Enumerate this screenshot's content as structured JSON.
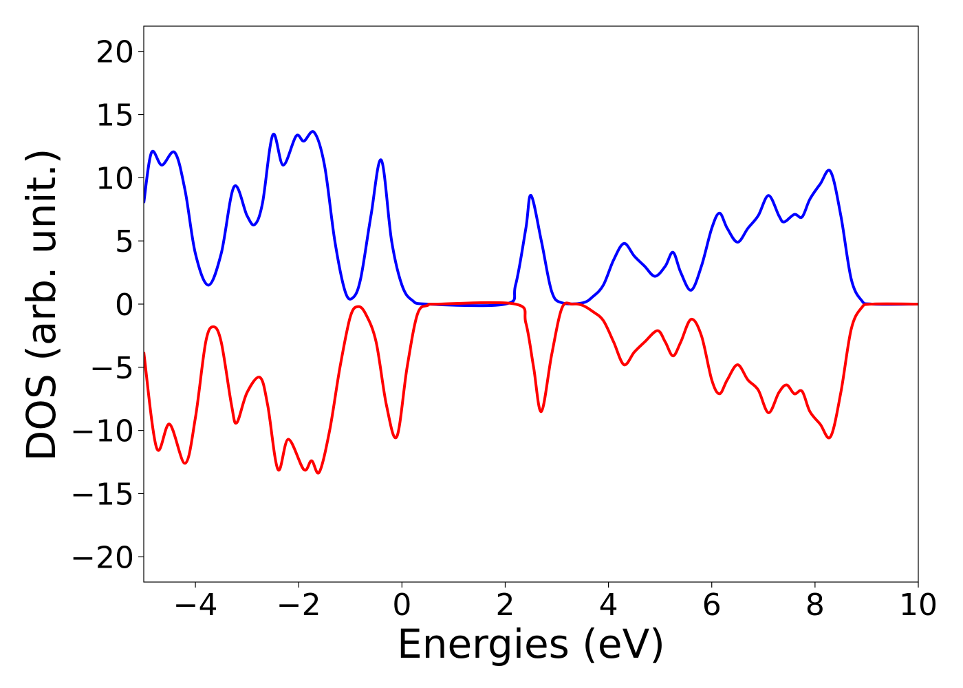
{
  "chart_data": {
    "type": "line",
    "xlabel": "Energies (eV)",
    "ylabel": "DOS (arb. unit.)",
    "xlim": [
      -5,
      10
    ],
    "ylim": [
      -22,
      22
    ],
    "xticks": [
      {
        "value": -4,
        "label": "−4"
      },
      {
        "value": -2,
        "label": "−2"
      },
      0,
      2,
      4,
      6,
      8,
      10
    ],
    "yticks": [
      {
        "value": -20,
        "label": "−20"
      },
      {
        "value": -15,
        "label": "−15"
      },
      {
        "value": -10,
        "label": "−10"
      },
      {
        "value": -5,
        "label": "−5"
      },
      0,
      5,
      10,
      15,
      20
    ],
    "grid": false,
    "series": [
      {
        "color": "#0000ff",
        "x": [
          -5,
          -4.85,
          -4.65,
          -4.4,
          -4.2,
          -4.0,
          -3.75,
          -3.5,
          -3.25,
          -3.0,
          -2.85,
          -2.7,
          -2.5,
          -2.3,
          -2.05,
          -1.9,
          -1.7,
          -1.5,
          -1.3,
          -1.1,
          -0.95,
          -0.8,
          -0.6,
          -0.4,
          -0.2,
          0,
          0.2,
          0.5,
          2.0,
          2.2,
          2.4,
          2.5,
          2.7,
          2.9,
          3.1,
          3.5,
          3.7,
          3.9,
          4.1,
          4.3,
          4.5,
          4.7,
          4.9,
          5.1,
          5.25,
          5.4,
          5.6,
          5.8,
          6.0,
          6.15,
          6.3,
          6.5,
          6.7,
          6.9,
          7.1,
          7.3,
          7.4,
          7.6,
          7.75,
          7.9,
          8.1,
          8.3,
          8.5,
          8.7,
          8.9,
          9.1,
          10
        ],
        "values": [
          8,
          12,
          11,
          12,
          9,
          4,
          1.5,
          4,
          9.3,
          7,
          6.3,
          8,
          13.4,
          11,
          13.3,
          12.9,
          13.6,
          11,
          5,
          1,
          0.5,
          2,
          7,
          11.4,
          5,
          1.5,
          0.3,
          0,
          0,
          1.5,
          6,
          8.6,
          5,
          1,
          0.1,
          0.1,
          0.6,
          1.5,
          3.5,
          4.8,
          3.8,
          3,
          2.2,
          3,
          4.1,
          2.5,
          1.1,
          3,
          6,
          7.2,
          6,
          4.9,
          6,
          7,
          8.6,
          7,
          6.5,
          7.1,
          6.9,
          8.3,
          9.5,
          10.5,
          7,
          2,
          0.3,
          0,
          0
        ]
      },
      {
        "color": "#ff0000",
        "x": [
          -5,
          -4.75,
          -4.5,
          -4.2,
          -4.0,
          -3.8,
          -3.65,
          -3.5,
          -3.3,
          -3.2,
          -3.0,
          -2.75,
          -2.6,
          -2.4,
          -2.2,
          -1.9,
          -1.75,
          -1.6,
          -1.4,
          -1.2,
          -1.0,
          -0.85,
          -0.7,
          -0.5,
          -0.3,
          -0.1,
          0.1,
          0.3,
          0.5,
          0.7,
          2.2,
          2.4,
          2.55,
          2.7,
          2.9,
          3.1,
          3.3,
          3.5,
          3.7,
          3.9,
          4.1,
          4.3,
          4.5,
          4.7,
          4.95,
          5.1,
          5.25,
          5.4,
          5.6,
          5.8,
          6.0,
          6.15,
          6.3,
          6.5,
          6.7,
          6.9,
          7.1,
          7.3,
          7.45,
          7.6,
          7.75,
          7.9,
          8.1,
          8.3,
          8.5,
          8.7,
          8.9,
          9.1,
          10
        ],
        "values": [
          -3.8,
          -11.4,
          -9.5,
          -12.6,
          -9,
          -3,
          -1.8,
          -3,
          -8,
          -9.4,
          -7,
          -5.8,
          -8,
          -13.1,
          -10.7,
          -13.1,
          -12.4,
          -13.3,
          -10,
          -5,
          -1,
          -0.2,
          -0.8,
          -3,
          -8,
          -10.5,
          -5,
          -0.8,
          -0.1,
          0,
          0,
          -1.5,
          -5,
          -8.5,
          -4,
          -0.3,
          0,
          -0.1,
          -0.6,
          -1.3,
          -3,
          -4.8,
          -3.8,
          -3,
          -2.1,
          -3,
          -4.1,
          -3,
          -1.2,
          -2.5,
          -6,
          -7.1,
          -6,
          -4.8,
          -6,
          -6.8,
          -8.6,
          -7,
          -6.4,
          -7.1,
          -6.9,
          -8.5,
          -9.5,
          -10.5,
          -7,
          -2,
          -0.3,
          0,
          0
        ]
      }
    ]
  }
}
